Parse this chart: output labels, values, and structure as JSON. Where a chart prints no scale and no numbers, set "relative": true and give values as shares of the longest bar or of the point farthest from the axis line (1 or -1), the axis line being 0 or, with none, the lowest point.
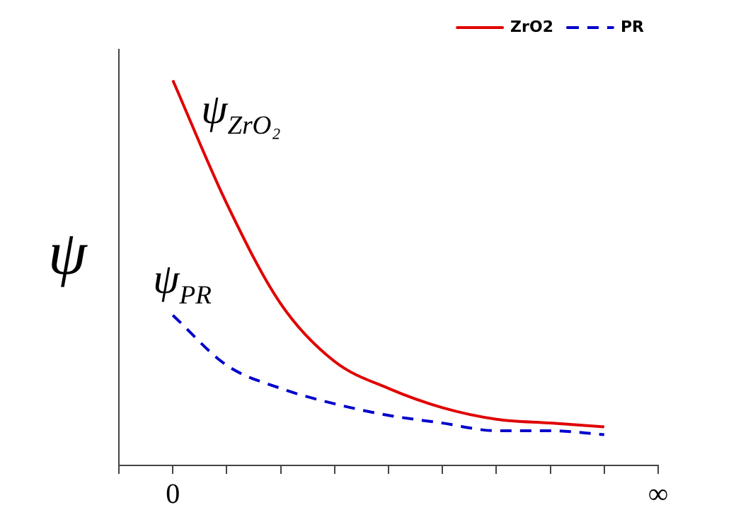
{
  "chart_data": {
    "type": "line",
    "relative": true,
    "ylabel": "ψ",
    "categories": [
      null,
      "0",
      null,
      null,
      null,
      null,
      null,
      null,
      null,
      null,
      "∞"
    ],
    "series": [
      {
        "name": "ZrO2",
        "color": "#e00000",
        "line_style": "solid",
        "values": [
          null,
          1,
          0.68,
          0.42,
          0.27,
          0.2,
          0.15,
          0.12,
          0.11,
          0.1,
          null
        ]
      },
      {
        "name": "PR",
        "color": "#0000cc",
        "line_style": "dashed",
        "values": [
          null,
          0.39,
          0.26,
          0.2,
          0.16,
          0.13,
          0.11,
          0.09,
          0.09,
          0.08,
          null
        ]
      }
    ],
    "annotations": [
      "ψ$_{ZrO₂}$",
      "ψ$_{PR}$"
    ],
    "legend": "top right",
    "marker": "none",
    "grid": false
  }
}
